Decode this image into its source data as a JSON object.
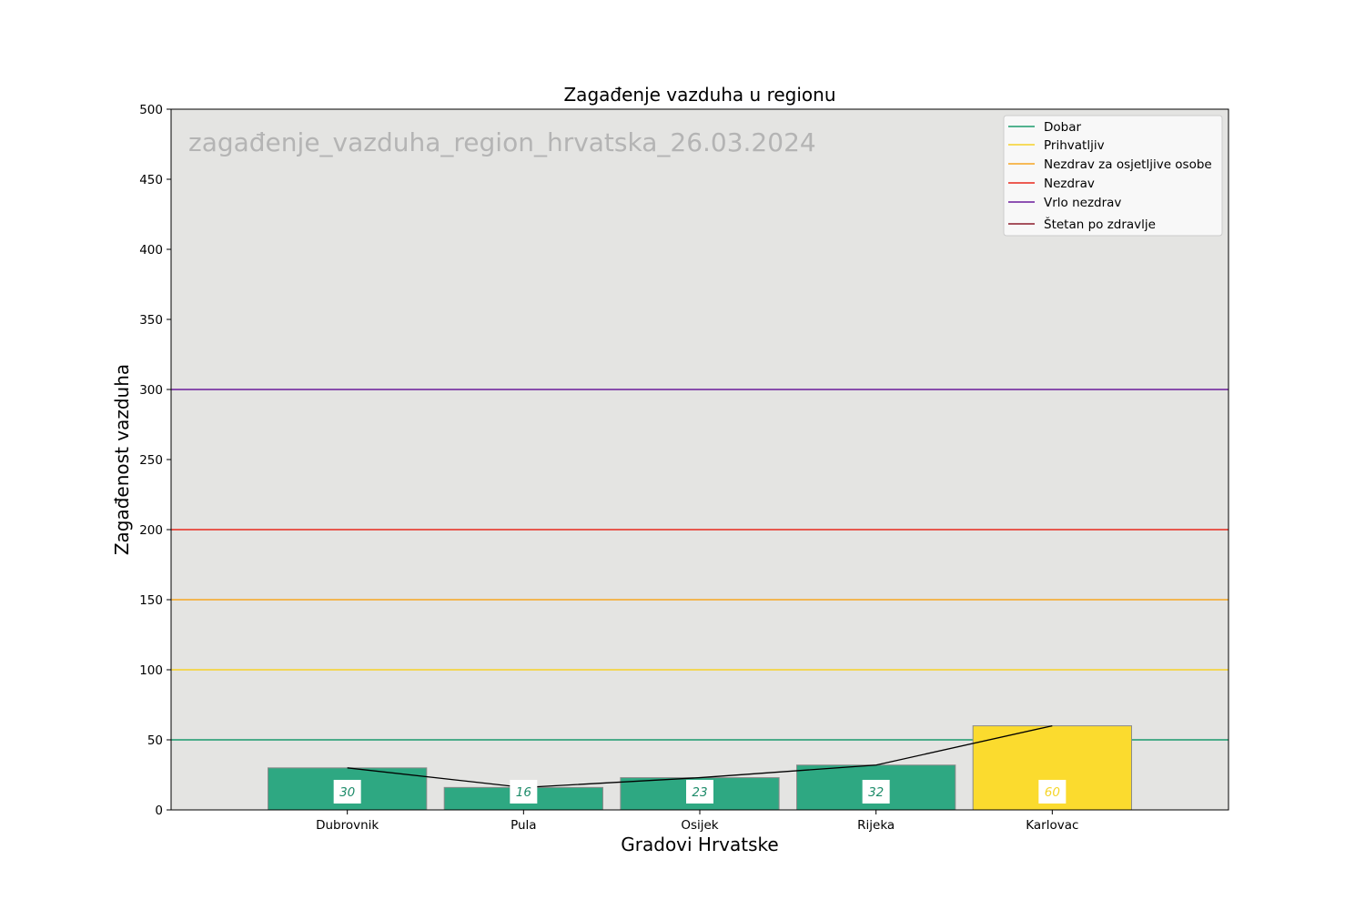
{
  "chart_data": {
    "type": "bar",
    "title": "Zagađenje vazduha u regionu",
    "xlabel": "Gradovi Hrvatske",
    "ylabel": "Zagađenost vazduha",
    "watermark": "zagađenje_vazduha_region_hrvatska_26.03.2024",
    "categories": [
      "Dubrovnik",
      "Pula",
      "Osijek",
      "Rijeka",
      "Karlovac"
    ],
    "values": [
      30,
      16,
      23,
      32,
      60
    ],
    "bar_colors": [
      "#2ea882",
      "#2ea882",
      "#2ea882",
      "#2ea882",
      "#fbdb2e"
    ],
    "bar_label_colors": [
      "#1e8c6a",
      "#1e8c6a",
      "#1e8c6a",
      "#1e8c6a",
      "#f5d52a"
    ],
    "trend_line": true,
    "ylim": [
      0,
      500
    ],
    "yticks": [
      0,
      50,
      100,
      150,
      200,
      250,
      300,
      350,
      400,
      450,
      500
    ],
    "grid": false,
    "background_color": "#e4e4e2",
    "legend_position": "top-right",
    "thresholds": [
      {
        "name": "Dobar",
        "value": 50,
        "color": "#1a9a6c"
      },
      {
        "name": "Prihvatljiv",
        "value": 100,
        "color": "#f6d128"
      },
      {
        "name": "Nezdrav za osjetljive osobe",
        "value": 150,
        "color": "#f6a623"
      },
      {
        "name": "Nezdrav",
        "value": 200,
        "color": "#e8291c"
      },
      {
        "name": "Vrlo nezdrav",
        "value": 300,
        "color": "#6a1b9a"
      },
      {
        "name": "Štetan po zdravlje",
        "value": null,
        "color": "#8b1a2b"
      }
    ]
  }
}
